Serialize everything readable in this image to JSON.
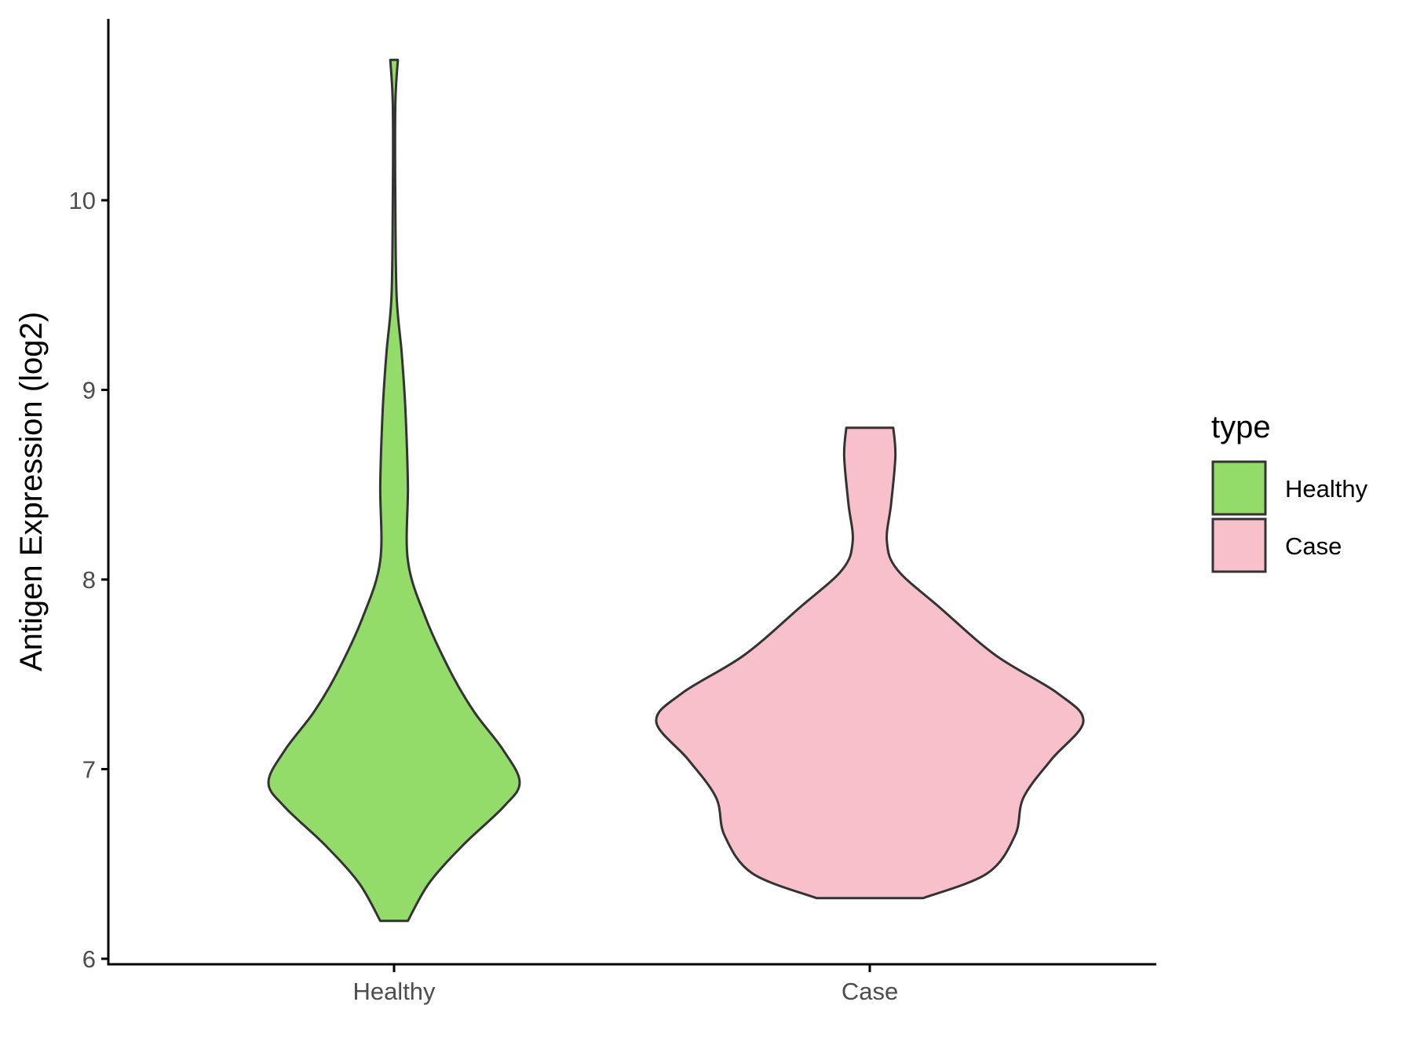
{
  "chart_data": {
    "type": "violin",
    "ylabel": "Antigen Expression (log2)",
    "xlabel": "",
    "categories": [
      "Healthy",
      "Case"
    ],
    "ylim": [
      5.97,
      10.95
    ],
    "yticks": [
      6,
      7,
      8,
      9,
      10
    ],
    "ytick_labels": [
      "6",
      "7",
      "8",
      "9",
      "10"
    ],
    "grid": false,
    "legend": {
      "title": "type",
      "position": "right",
      "items": [
        {
          "label": "Healthy",
          "color": "#93DC6A"
        },
        {
          "label": "Case",
          "color": "#F7C0CB"
        }
      ]
    },
    "series": [
      {
        "category": "Healthy",
        "color": "#93DC6A",
        "min": 6.2,
        "max": 10.74,
        "density_profile": [
          [
            6.2,
            0.11
          ],
          [
            6.4,
            0.28
          ],
          [
            6.6,
            0.55
          ],
          [
            6.8,
            0.87
          ],
          [
            6.93,
            1.0
          ],
          [
            7.1,
            0.87
          ],
          [
            7.3,
            0.64
          ],
          [
            7.5,
            0.46
          ],
          [
            7.8,
            0.25
          ],
          [
            8.1,
            0.11
          ],
          [
            8.5,
            0.11
          ],
          [
            8.9,
            0.09
          ],
          [
            9.2,
            0.06
          ],
          [
            9.5,
            0.02
          ],
          [
            10.0,
            0.01
          ],
          [
            10.5,
            0.01
          ],
          [
            10.74,
            0.03
          ]
        ]
      },
      {
        "category": "Case",
        "color": "#F7C0CB",
        "min": 6.32,
        "max": 8.8,
        "density_profile": [
          [
            6.32,
            0.25
          ],
          [
            6.45,
            0.55
          ],
          [
            6.65,
            0.68
          ],
          [
            6.85,
            0.72
          ],
          [
            7.05,
            0.85
          ],
          [
            7.25,
            1.0
          ],
          [
            7.4,
            0.88
          ],
          [
            7.6,
            0.59
          ],
          [
            7.85,
            0.33
          ],
          [
            8.05,
            0.13
          ],
          [
            8.2,
            0.08
          ],
          [
            8.4,
            0.1
          ],
          [
            8.65,
            0.12
          ],
          [
            8.8,
            0.11
          ]
        ]
      }
    ]
  }
}
